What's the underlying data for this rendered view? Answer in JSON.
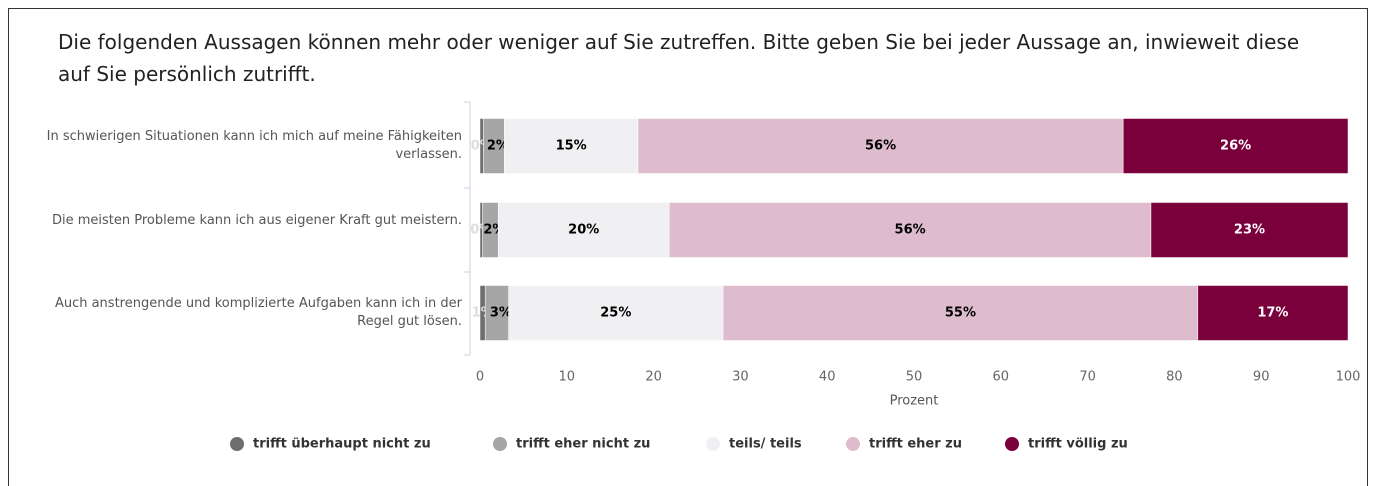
{
  "chart_data": {
    "type": "stacked_bar_horizontal",
    "title": "Die folgenden Aussagen können mehr oder weniger auf Sie zutreffen. Bitte geben Sie bei jeder Aussage an, inwieweit diese auf Sie persönlich zutrifft.",
    "categories": [
      "In schwierigen Situationen kann ich mich auf meine Fähigkeiten verlassen.",
      "Die meisten Probleme kann ich aus eigener Kraft gut meistern.",
      "Auch anstrengende und komplizierte Aufgaben kann ich in der Regel gut lösen."
    ],
    "series": [
      {
        "name": "trifft überhaupt nicht zu",
        "color": "#6e6e6e",
        "values": [
          0.4,
          0.3,
          0.6
        ],
        "value_labels": [
          "0%",
          "0%",
          "1%"
        ]
      },
      {
        "name": "trifft eher nicht zu",
        "color": "#a6a6a6",
        "values": [
          2.4,
          1.8,
          2.7
        ],
        "value_labels": [
          "2%",
          "2%",
          "3%"
        ]
      },
      {
        "name": "teils/ teils",
        "color": "#f0f0f3",
        "values": [
          15.4,
          19.7,
          24.7
        ],
        "value_labels": [
          "15%",
          "20%",
          "25%"
        ]
      },
      {
        "name": "trifft eher zu",
        "color": "#dfbccd",
        "values": [
          55.9,
          55.5,
          54.7
        ],
        "value_labels": [
          "56%",
          "56%",
          "55%"
        ]
      },
      {
        "name": "trifft völlig zu",
        "color": "#7a003c",
        "values": [
          25.9,
          22.7,
          17.3
        ],
        "value_labels": [
          "26%",
          "23%",
          "17%"
        ]
      }
    ],
    "xlabel": "Prozent",
    "xlim": [
      0,
      100
    ],
    "xticks": [
      0,
      10,
      20,
      30,
      40,
      50,
      60,
      70,
      80,
      90,
      100
    ],
    "legend": "bottom"
  }
}
